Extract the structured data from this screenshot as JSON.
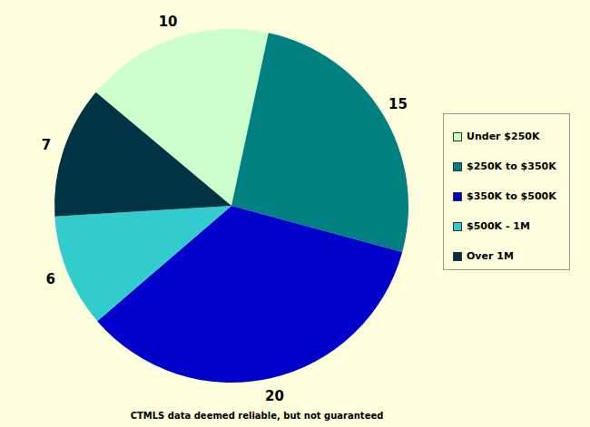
{
  "chart_data": {
    "type": "pie",
    "categories": [
      "Under $250K",
      "$250K to $350K",
      "$350K to $500K",
      "$500K - 1M",
      "Over 1M"
    ],
    "values": [
      10,
      15,
      20,
      6,
      7
    ],
    "colors": [
      "#ccffcc",
      "#008080",
      "#0000cc",
      "#33cccc",
      "#003344"
    ],
    "data_labels": true,
    "legend": "right",
    "annotations": [
      "CTMLS data deemed reliable, but not guaranteed"
    ]
  }
}
